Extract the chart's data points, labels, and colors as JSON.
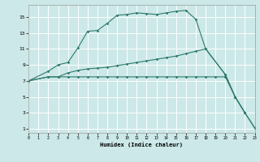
{
  "xlabel": "Humidex (Indice chaleur)",
  "bg_color": "#cce8e8",
  "grid_color": "#ffffff",
  "line_color": "#2d7a6a",
  "x_ticks": [
    0,
    1,
    2,
    3,
    4,
    5,
    6,
    7,
    8,
    9,
    10,
    11,
    12,
    13,
    14,
    15,
    16,
    17,
    18,
    19,
    20,
    21,
    22,
    23
  ],
  "y_ticks": [
    1,
    3,
    5,
    7,
    9,
    11,
    13,
    15
  ],
  "xlim": [
    0,
    23
  ],
  "ylim": [
    0.5,
    16.5
  ],
  "line1_x": [
    0,
    2,
    3,
    4,
    5,
    6,
    7,
    8,
    9,
    10,
    11,
    12,
    13,
    14,
    15,
    16,
    17,
    18,
    20,
    21,
    22,
    23
  ],
  "line1_y": [
    7.0,
    8.2,
    9.0,
    9.3,
    11.1,
    13.2,
    13.3,
    14.2,
    15.2,
    15.3,
    15.5,
    15.4,
    15.3,
    15.5,
    15.7,
    15.8,
    14.7,
    11.0,
    7.8,
    5.0,
    3.0,
    1.1
  ],
  "line2_x": [
    0,
    2,
    3,
    4,
    5,
    6,
    7,
    8,
    9,
    10,
    11,
    12,
    13,
    14,
    15,
    16,
    17,
    18,
    20,
    21,
    22
  ],
  "line2_y": [
    7.0,
    7.5,
    7.5,
    8.0,
    8.3,
    8.5,
    8.6,
    8.7,
    8.9,
    9.1,
    9.3,
    9.5,
    9.7,
    9.9,
    10.1,
    10.4,
    10.7,
    11.0,
    7.8,
    5.0,
    3.0
  ],
  "line3_x": [
    0,
    2,
    3,
    4,
    5,
    6,
    7,
    8,
    9,
    10,
    11,
    12,
    13,
    14,
    15,
    16,
    17,
    18,
    19,
    20,
    21,
    22,
    23
  ],
  "line3_y": [
    7.0,
    7.5,
    7.5,
    7.5,
    7.5,
    7.5,
    7.5,
    7.5,
    7.5,
    7.5,
    7.5,
    7.5,
    7.5,
    7.5,
    7.5,
    7.5,
    7.5,
    7.5,
    7.5,
    7.5,
    5.0,
    3.0,
    1.1
  ]
}
